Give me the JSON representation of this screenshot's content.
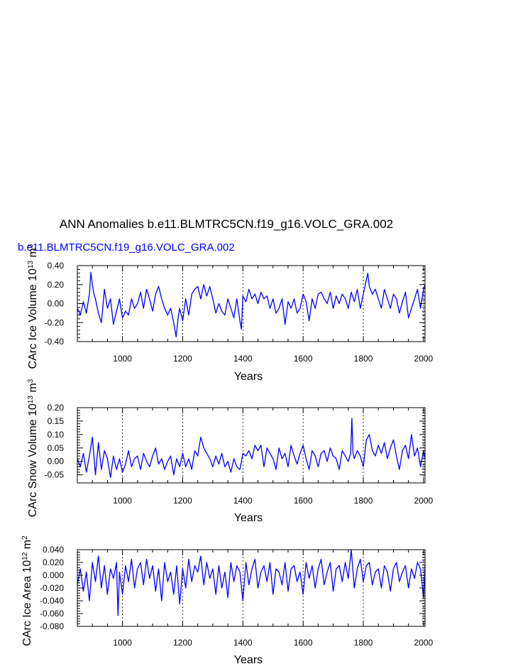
{
  "main_title": "ANN Anomalies b.e11.BLMTRC5CN.f19_g16.VOLC_GRA.002",
  "run_label": "b.e11.BLMTRC5CN.f19_g16.VOLC_GRA.002",
  "colors": {
    "series": "#0000ff",
    "axes": "#000000",
    "background": "#ffffff"
  },
  "chart_data": [
    {
      "type": "line",
      "name": "ice-volume",
      "xlabel": "Years",
      "ylabel": "CArc Ice Volume 10",
      "ylabel_exp": "13",
      "ylabel_unit": " m",
      "ylabel_unit_exp": "3",
      "xlim": [
        850,
        2005
      ],
      "ylim": [
        -0.4,
        0.4
      ],
      "xticks": [
        1000,
        1200,
        1400,
        1600,
        1800,
        2000
      ],
      "xtick_labels": [
        "1000",
        "1200",
        "1400",
        "1600",
        "1800",
        "2000"
      ],
      "yticks": [
        -0.4,
        -0.2,
        0.0,
        0.2,
        0.4
      ],
      "ytick_labels": [
        "-0.40",
        "-0.20",
        "0.00",
        "0.20",
        "0.40"
      ],
      "grid": "dashed vertical at x ticks",
      "series": [
        {
          "name": "b.e11.BLMTRC5CN.f19_g16.VOLC_GRA.002",
          "x": [
            850,
            860,
            870,
            880,
            890,
            895,
            900,
            905,
            910,
            920,
            930,
            940,
            950,
            960,
            970,
            980,
            990,
            1000,
            1010,
            1020,
            1030,
            1040,
            1050,
            1060,
            1070,
            1080,
            1090,
            1100,
            1110,
            1120,
            1130,
            1140,
            1150,
            1160,
            1170,
            1178,
            1185,
            1190,
            1200,
            1210,
            1220,
            1230,
            1240,
            1250,
            1260,
            1270,
            1280,
            1290,
            1300,
            1310,
            1320,
            1330,
            1340,
            1350,
            1360,
            1370,
            1380,
            1390,
            1395,
            1400,
            1410,
            1420,
            1430,
            1440,
            1450,
            1460,
            1470,
            1480,
            1490,
            1500,
            1510,
            1520,
            1530,
            1540,
            1550,
            1560,
            1570,
            1580,
            1590,
            1600,
            1610,
            1620,
            1630,
            1640,
            1650,
            1660,
            1670,
            1680,
            1690,
            1700,
            1710,
            1720,
            1730,
            1740,
            1750,
            1760,
            1770,
            1780,
            1790,
            1800,
            1810,
            1815,
            1820,
            1830,
            1840,
            1850,
            1860,
            1870,
            1880,
            1890,
            1900,
            1910,
            1920,
            1930,
            1940,
            1950,
            1960,
            1970,
            1980,
            1990,
            2000,
            2005
          ],
          "values": [
            -0.05,
            -0.12,
            0.02,
            -0.1,
            0.1,
            0.33,
            0.2,
            0.1,
            0.05,
            -0.1,
            -0.2,
            0.15,
            -0.05,
            0.05,
            -0.22,
            -0.08,
            0.05,
            -0.15,
            -0.08,
            -0.12,
            0.05,
            -0.05,
            0.0,
            0.12,
            -0.05,
            0.15,
            0.05,
            -0.08,
            0.1,
            0.18,
            0.05,
            -0.05,
            -0.12,
            -0.05,
            -0.2,
            -0.35,
            -0.15,
            -0.05,
            -0.18,
            0.05,
            -0.12,
            0.1,
            0.15,
            0.18,
            0.05,
            0.2,
            0.08,
            0.18,
            0.05,
            -0.1,
            0.0,
            -0.08,
            -0.12,
            0.05,
            -0.05,
            -0.15,
            0.05,
            -0.18,
            -0.27,
            0.08,
            0.02,
            0.15,
            0.05,
            0.1,
            0.0,
            0.12,
            0.05,
            0.08,
            -0.05,
            0.05,
            -0.1,
            -0.05,
            0.05,
            -0.22,
            0.02,
            -0.05,
            0.05,
            -0.1,
            -0.05,
            0.1,
            0.02,
            -0.18,
            0.05,
            -0.05,
            0.1,
            0.12,
            0.05,
            0.0,
            0.12,
            -0.05,
            0.08,
            0.0,
            0.1,
            0.05,
            -0.05,
            0.12,
            0.02,
            0.15,
            -0.05,
            0.1,
            0.25,
            0.32,
            0.18,
            0.1,
            0.15,
            0.05,
            -0.05,
            0.15,
            0.05,
            -0.05,
            0.1,
            0.05,
            -0.1,
            0.02,
            0.12,
            -0.15,
            -0.05,
            0.05,
            0.15,
            -0.05,
            0.15,
            0.2
          ]
        }
      ]
    },
    {
      "type": "line",
      "name": "snow-volume",
      "xlabel": "Years",
      "ylabel": "CArc Snow Volume 10",
      "ylabel_exp": "13",
      "ylabel_unit": " m",
      "ylabel_unit_exp": "3",
      "xlim": [
        850,
        2005
      ],
      "ylim": [
        -0.08,
        0.2
      ],
      "xticks": [
        1000,
        1200,
        1400,
        1600,
        1800,
        2000
      ],
      "xtick_labels": [
        "1000",
        "1200",
        "1400",
        "1600",
        "1800",
        "2000"
      ],
      "yticks": [
        -0.05,
        0.0,
        0.05,
        0.1,
        0.15,
        0.2
      ],
      "ytick_labels": [
        "-0.05",
        "0.00",
        "0.05",
        "0.10",
        "0.15",
        "0.20"
      ],
      "grid": "dashed vertical at x ticks",
      "series": [
        {
          "name": "b.e11.BLMTRC5CN.f19_g16.VOLC_GRA.002",
          "x": [
            850,
            860,
            870,
            880,
            890,
            900,
            910,
            920,
            930,
            940,
            950,
            960,
            970,
            980,
            990,
            1000,
            1010,
            1020,
            1030,
            1040,
            1050,
            1060,
            1070,
            1080,
            1090,
            1100,
            1110,
            1120,
            1130,
            1140,
            1150,
            1160,
            1170,
            1180,
            1190,
            1200,
            1210,
            1220,
            1230,
            1240,
            1250,
            1260,
            1270,
            1280,
            1290,
            1300,
            1310,
            1320,
            1330,
            1340,
            1350,
            1360,
            1370,
            1380,
            1390,
            1400,
            1410,
            1420,
            1430,
            1440,
            1450,
            1460,
            1470,
            1480,
            1490,
            1500,
            1510,
            1520,
            1530,
            1540,
            1550,
            1560,
            1570,
            1580,
            1590,
            1600,
            1610,
            1620,
            1630,
            1640,
            1650,
            1660,
            1670,
            1680,
            1690,
            1700,
            1710,
            1720,
            1730,
            1740,
            1750,
            1758,
            1762,
            1766,
            1770,
            1780,
            1790,
            1800,
            1810,
            1820,
            1830,
            1840,
            1850,
            1860,
            1870,
            1880,
            1890,
            1900,
            1910,
            1920,
            1930,
            1940,
            1950,
            1960,
            1970,
            1980,
            1990,
            2000,
            2005
          ],
          "values": [
            0.01,
            -0.02,
            0.03,
            -0.04,
            0.02,
            0.09,
            -0.05,
            0.07,
            -0.03,
            0.04,
            0.01,
            -0.06,
            0.02,
            -0.03,
            0.01,
            -0.04,
            -0.01,
            0.04,
            -0.02,
            0.01,
            0.02,
            -0.03,
            0.03,
            0.0,
            -0.02,
            0.02,
            0.05,
            -0.01,
            0.01,
            -0.03,
            0.0,
            0.02,
            -0.05,
            0.01,
            -0.02,
            0.03,
            -0.02,
            0.01,
            -0.03,
            0.04,
            0.02,
            0.09,
            0.05,
            0.03,
            0.01,
            -0.02,
            0.02,
            -0.01,
            0.03,
            -0.02,
            0.0,
            -0.04,
            0.01,
            -0.02,
            -0.03,
            0.03,
            0.02,
            0.04,
            0.01,
            0.06,
            0.04,
            0.06,
            -0.02,
            0.05,
            0.03,
            0.01,
            -0.03,
            0.05,
            0.01,
            0.03,
            -0.02,
            0.06,
            0.02,
            -0.01,
            0.03,
            0.06,
            0.01,
            -0.03,
            0.04,
            0.02,
            -0.02,
            0.03,
            0.04,
            0.0,
            0.05,
            0.02,
            0.01,
            -0.03,
            0.04,
            0.02,
            0.0,
            0.03,
            0.16,
            0.03,
            0.01,
            0.04,
            0.02,
            -0.02,
            0.08,
            0.1,
            0.04,
            0.02,
            0.06,
            0.03,
            0.07,
            0.01,
            0.05,
            0.08,
            0.02,
            -0.03,
            0.04,
            0.06,
            0.01,
            0.1,
            0.02,
            0.05,
            -0.02,
            0.04,
            0.01
          ]
        }
      ]
    },
    {
      "type": "line",
      "name": "ice-area",
      "xlabel": "Years",
      "ylabel": "CArc Ice Area 10",
      "ylabel_exp": "12",
      "ylabel_unit": " m",
      "ylabel_unit_exp": "2",
      "xlim": [
        850,
        2005
      ],
      "ylim": [
        -0.08,
        0.04
      ],
      "xticks": [
        1000,
        1200,
        1400,
        1600,
        1800,
        2000
      ],
      "xtick_labels": [
        "1000",
        "1200",
        "1400",
        "1600",
        "1800",
        "2000"
      ],
      "yticks": [
        -0.08,
        -0.06,
        -0.04,
        -0.02,
        0.0,
        0.02,
        0.04
      ],
      "ytick_labels": [
        "-0.080",
        "-0.060",
        "-0.040",
        "-0.020",
        "0.000",
        "0.020",
        "0.040"
      ],
      "grid": "dashed vertical at x ticks",
      "series": [
        {
          "name": "b.e11.BLMTRC5CN.f19_g16.VOLC_GRA.002",
          "x": [
            850,
            860,
            870,
            880,
            890,
            900,
            910,
            920,
            930,
            940,
            950,
            960,
            970,
            980,
            985,
            990,
            1000,
            1010,
            1020,
            1030,
            1040,
            1050,
            1060,
            1070,
            1080,
            1090,
            1100,
            1110,
            1120,
            1130,
            1140,
            1150,
            1160,
            1170,
            1180,
            1190,
            1200,
            1210,
            1220,
            1230,
            1240,
            1250,
            1260,
            1270,
            1280,
            1290,
            1300,
            1310,
            1320,
            1330,
            1340,
            1350,
            1360,
            1370,
            1380,
            1390,
            1400,
            1410,
            1420,
            1430,
            1440,
            1450,
            1460,
            1470,
            1480,
            1490,
            1500,
            1510,
            1520,
            1530,
            1540,
            1550,
            1560,
            1570,
            1580,
            1590,
            1600,
            1610,
            1620,
            1630,
            1640,
            1650,
            1660,
            1670,
            1680,
            1690,
            1700,
            1710,
            1720,
            1730,
            1740,
            1750,
            1760,
            1770,
            1780,
            1790,
            1800,
            1810,
            1820,
            1830,
            1840,
            1850,
            1860,
            1870,
            1880,
            1890,
            1900,
            1910,
            1920,
            1930,
            1940,
            1950,
            1960,
            1970,
            1980,
            1990,
            2000,
            2005
          ],
          "values": [
            -0.015,
            0.01,
            -0.025,
            0.005,
            -0.04,
            0.02,
            -0.01,
            0.03,
            -0.02,
            0.015,
            -0.03,
            0.01,
            -0.005,
            0.02,
            -0.063,
            0.005,
            -0.03,
            0.015,
            -0.01,
            0.025,
            -0.02,
            0.01,
            0.02,
            -0.015,
            0.025,
            -0.005,
            0.015,
            -0.025,
            0.01,
            -0.04,
            0.02,
            -0.01,
            0.005,
            -0.03,
            0.015,
            -0.045,
            0.01,
            -0.02,
            0.025,
            -0.01,
            0.015,
            0.005,
            0.03,
            -0.015,
            0.02,
            -0.005,
            0.01,
            -0.03,
            0.015,
            -0.02,
            0.005,
            -0.035,
            0.02,
            -0.01,
            0.015,
            0.005,
            -0.04,
            0.02,
            -0.015,
            0.01,
            0.025,
            -0.02,
            0.005,
            0.015,
            -0.01,
            0.02,
            -0.03,
            0.01,
            0.005,
            -0.015,
            0.02,
            -0.025,
            0.01,
            0.015,
            -0.01,
            0.005,
            -0.03,
            0.02,
            -0.005,
            0.015,
            -0.02,
            0.01,
            0.025,
            -0.015,
            0.005,
            0.02,
            -0.025,
            0.01,
            0.015,
            -0.01,
            0.02,
            -0.005,
            0.04,
            -0.02,
            0.01,
            0.025,
            -0.01,
            0.015,
            0.02,
            -0.015,
            0.005,
            0.01,
            -0.02,
            0.015,
            0.005,
            -0.025,
            0.01,
            0.02,
            -0.01,
            0.005,
            0.015,
            -0.02,
            0.01,
            -0.005,
            0.02,
            0.01,
            -0.035,
            0.015
          ]
        }
      ]
    }
  ]
}
